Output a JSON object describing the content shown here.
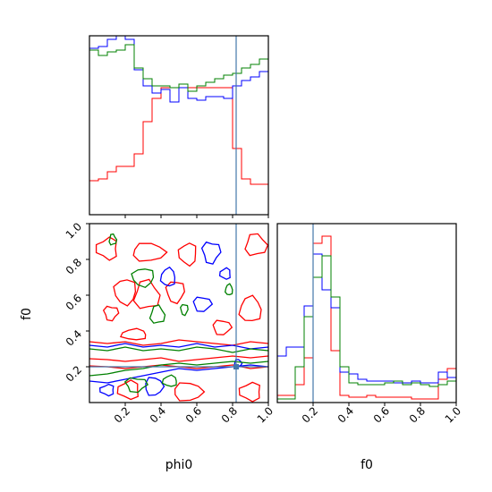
{
  "chart_data": [
    {
      "panel": "phi0-marginal",
      "type": "histogram",
      "title": "",
      "xlabel": "",
      "ylabel": "",
      "xlim": [
        0,
        1
      ],
      "truth": 0.82,
      "bins": [
        0.0,
        0.05,
        0.1,
        0.15,
        0.2,
        0.25,
        0.3,
        0.35,
        0.4,
        0.45,
        0.5,
        0.55,
        0.6,
        0.65,
        0.7,
        0.75,
        0.8,
        0.85,
        0.9,
        0.95,
        1.0
      ],
      "series": [
        {
          "color": "#ff0000",
          "values": [
            0.19,
            0.2,
            0.24,
            0.27,
            0.27,
            0.34,
            0.52,
            0.65,
            0.71,
            0.71,
            0.71,
            0.71,
            0.71,
            0.71,
            0.71,
            0.71,
            0.37,
            0.2,
            0.17,
            0.17
          ]
        },
        {
          "color": "#0000ff",
          "values": [
            0.93,
            0.94,
            0.98,
            1.0,
            0.98,
            0.81,
            0.72,
            0.68,
            0.7,
            0.63,
            0.71,
            0.65,
            0.64,
            0.66,
            0.66,
            0.65,
            0.72,
            0.75,
            0.77,
            0.8
          ]
        },
        {
          "color": "#008000",
          "values": [
            0.92,
            0.89,
            0.91,
            0.92,
            0.95,
            0.82,
            0.76,
            0.72,
            0.72,
            0.71,
            0.73,
            0.69,
            0.72,
            0.74,
            0.76,
            0.78,
            0.79,
            0.82,
            0.84,
            0.87
          ]
        }
      ]
    },
    {
      "panel": "f0-vs-phi0-contours",
      "type": "contour",
      "title": "",
      "xlabel": "phi0",
      "ylabel": "f0",
      "xlim": [
        0,
        1
      ],
      "ylim": [
        0,
        1
      ],
      "xticks": [
        "0.2",
        "0.4",
        "0.6",
        "0.8",
        "1.0"
      ],
      "yticks": [
        "0.2",
        "0.4",
        "0.6",
        "0.8",
        "1.0"
      ],
      "truth": {
        "phi0": 0.82,
        "f0": 0.2
      },
      "series": [
        {
          "color": "#ff0000",
          "lines": [
            [
              [
                0,
                0.245
              ],
              [
                0.1,
                0.24
              ],
              [
                0.2,
                0.23
              ],
              [
                0.3,
                0.24
              ],
              [
                0.4,
                0.25
              ],
              [
                0.5,
                0.23
              ],
              [
                0.6,
                0.24
              ],
              [
                0.7,
                0.25
              ],
              [
                0.8,
                0.26
              ],
              [
                0.9,
                0.25
              ],
              [
                1.0,
                0.26
              ]
            ],
            [
              [
                0,
                0.205
              ],
              [
                0.1,
                0.2
              ],
              [
                0.2,
                0.19
              ],
              [
                0.3,
                0.2
              ],
              [
                0.4,
                0.21
              ],
              [
                0.5,
                0.2
              ],
              [
                0.6,
                0.19
              ],
              [
                0.7,
                0.2
              ],
              [
                0.8,
                0.21
              ],
              [
                0.9,
                0.19
              ],
              [
                1.0,
                0.2
              ]
            ],
            [
              [
                0,
                0.34
              ],
              [
                0.1,
                0.33
              ],
              [
                0.2,
                0.34
              ],
              [
                0.3,
                0.32
              ],
              [
                0.4,
                0.33
              ],
              [
                0.5,
                0.35
              ],
              [
                0.6,
                0.34
              ],
              [
                0.7,
                0.33
              ],
              [
                0.8,
                0.32
              ],
              [
                0.9,
                0.34
              ],
              [
                1.0,
                0.33
              ]
            ]
          ],
          "loops": [
            {
              "cx": 0.1,
              "cy": 0.86,
              "rx": 0.06,
              "ry": 0.06
            },
            {
              "cx": 0.33,
              "cy": 0.84,
              "rx": 0.09,
              "ry": 0.05
            },
            {
              "cx": 0.55,
              "cy": 0.83,
              "rx": 0.05,
              "ry": 0.06
            },
            {
              "cx": 0.93,
              "cy": 0.88,
              "rx": 0.06,
              "ry": 0.06
            },
            {
              "cx": 0.2,
              "cy": 0.62,
              "rx": 0.06,
              "ry": 0.07
            },
            {
              "cx": 0.32,
              "cy": 0.6,
              "rx": 0.07,
              "ry": 0.08
            },
            {
              "cx": 0.48,
              "cy": 0.62,
              "rx": 0.05,
              "ry": 0.06
            },
            {
              "cx": 0.9,
              "cy": 0.52,
              "rx": 0.06,
              "ry": 0.07
            },
            {
              "cx": 0.12,
              "cy": 0.5,
              "rx": 0.04,
              "ry": 0.04
            },
            {
              "cx": 0.25,
              "cy": 0.38,
              "rx": 0.07,
              "ry": 0.03
            },
            {
              "cx": 0.74,
              "cy": 0.42,
              "rx": 0.05,
              "ry": 0.04
            },
            {
              "cx": 0.22,
              "cy": 0.07,
              "rx": 0.06,
              "ry": 0.05
            },
            {
              "cx": 0.55,
              "cy": 0.06,
              "rx": 0.08,
              "ry": 0.05
            },
            {
              "cx": 0.9,
              "cy": 0.06,
              "rx": 0.06,
              "ry": 0.05
            }
          ]
        },
        {
          "color": "#0000ff",
          "lines": [
            [
              [
                0,
                0.32
              ],
              [
                0.1,
                0.31
              ],
              [
                0.2,
                0.33
              ],
              [
                0.3,
                0.31
              ],
              [
                0.4,
                0.32
              ],
              [
                0.5,
                0.31
              ],
              [
                0.6,
                0.33
              ],
              [
                0.7,
                0.31
              ],
              [
                0.8,
                0.32
              ],
              [
                0.9,
                0.3
              ],
              [
                1.0,
                0.31
              ]
            ],
            [
              [
                0,
                0.12
              ],
              [
                0.1,
                0.11
              ],
              [
                0.2,
                0.13
              ],
              [
                0.3,
                0.15
              ],
              [
                0.4,
                0.17
              ],
              [
                0.5,
                0.19
              ],
              [
                0.6,
                0.18
              ],
              [
                0.7,
                0.19
              ],
              [
                0.8,
                0.2
              ],
              [
                0.9,
                0.21
              ],
              [
                1.0,
                0.2
              ]
            ]
          ],
          "loops": [
            {
              "cx": 0.68,
              "cy": 0.84,
              "rx": 0.05,
              "ry": 0.06
            },
            {
              "cx": 0.44,
              "cy": 0.7,
              "rx": 0.04,
              "ry": 0.05
            },
            {
              "cx": 0.63,
              "cy": 0.55,
              "rx": 0.05,
              "ry": 0.04
            },
            {
              "cx": 0.76,
              "cy": 0.72,
              "rx": 0.03,
              "ry": 0.03
            },
            {
              "cx": 0.36,
              "cy": 0.09,
              "rx": 0.05,
              "ry": 0.05
            },
            {
              "cx": 0.1,
              "cy": 0.07,
              "rx": 0.04,
              "ry": 0.03
            },
            {
              "cx": 0.83,
              "cy": 0.22,
              "rx": 0.02,
              "ry": 0.02
            }
          ]
        },
        {
          "color": "#008000",
          "lines": [
            [
              [
                0,
                0.3
              ],
              [
                0.1,
                0.29
              ],
              [
                0.2,
                0.31
              ],
              [
                0.3,
                0.29
              ],
              [
                0.4,
                0.3
              ],
              [
                0.5,
                0.29
              ],
              [
                0.6,
                0.31
              ],
              [
                0.7,
                0.3
              ],
              [
                0.8,
                0.28
              ],
              [
                0.9,
                0.3
              ],
              [
                1.0,
                0.29
              ]
            ],
            [
              [
                0,
                0.15
              ],
              [
                0.1,
                0.16
              ],
              [
                0.2,
                0.18
              ],
              [
                0.3,
                0.19
              ],
              [
                0.4,
                0.21
              ],
              [
                0.5,
                0.22
              ],
              [
                0.6,
                0.21
              ],
              [
                0.7,
                0.22
              ],
              [
                0.8,
                0.23
              ],
              [
                0.9,
                0.22
              ],
              [
                1.0,
                0.23
              ]
            ]
          ],
          "loops": [
            {
              "cx": 0.13,
              "cy": 0.91,
              "rx": 0.02,
              "ry": 0.03
            },
            {
              "cx": 0.3,
              "cy": 0.7,
              "rx": 0.06,
              "ry": 0.05
            },
            {
              "cx": 0.38,
              "cy": 0.49,
              "rx": 0.04,
              "ry": 0.05
            },
            {
              "cx": 0.53,
              "cy": 0.52,
              "rx": 0.02,
              "ry": 0.03
            },
            {
              "cx": 0.78,
              "cy": 0.63,
              "rx": 0.02,
              "ry": 0.03
            },
            {
              "cx": 0.26,
              "cy": 0.1,
              "rx": 0.06,
              "ry": 0.04
            },
            {
              "cx": 0.45,
              "cy": 0.12,
              "rx": 0.04,
              "ry": 0.03
            }
          ]
        }
      ]
    },
    {
      "panel": "f0-marginal",
      "type": "histogram",
      "title": "",
      "xlabel": "f0",
      "ylabel": "",
      "xlim": [
        0,
        1
      ],
      "xticks": [
        "0.2",
        "0.4",
        "0.6",
        "0.8",
        "1.0"
      ],
      "truth": 0.2,
      "bins": [
        0.0,
        0.05,
        0.1,
        0.15,
        0.2,
        0.25,
        0.3,
        0.35,
        0.4,
        0.45,
        0.5,
        0.55,
        0.6,
        0.65,
        0.7,
        0.75,
        0.8,
        0.85,
        0.9,
        0.95,
        1.0
      ],
      "series": [
        {
          "color": "#ff0000",
          "values": [
            0.04,
            0.04,
            0.1,
            0.25,
            0.89,
            0.93,
            0.29,
            0.04,
            0.03,
            0.03,
            0.04,
            0.03,
            0.03,
            0.03,
            0.03,
            0.02,
            0.02,
            0.02,
            0.13,
            0.19
          ]
        },
        {
          "color": "#0000ff",
          "values": [
            0.26,
            0.31,
            0.31,
            0.54,
            0.83,
            0.63,
            0.53,
            0.17,
            0.16,
            0.13,
            0.12,
            0.12,
            0.12,
            0.11,
            0.11,
            0.12,
            0.11,
            0.11,
            0.17,
            0.14
          ]
        },
        {
          "color": "#008000",
          "values": [
            0.02,
            0.02,
            0.2,
            0.48,
            0.7,
            0.82,
            0.59,
            0.2,
            0.11,
            0.1,
            0.1,
            0.1,
            0.11,
            0.12,
            0.1,
            0.11,
            0.1,
            0.09,
            0.1,
            0.12
          ]
        }
      ]
    }
  ]
}
